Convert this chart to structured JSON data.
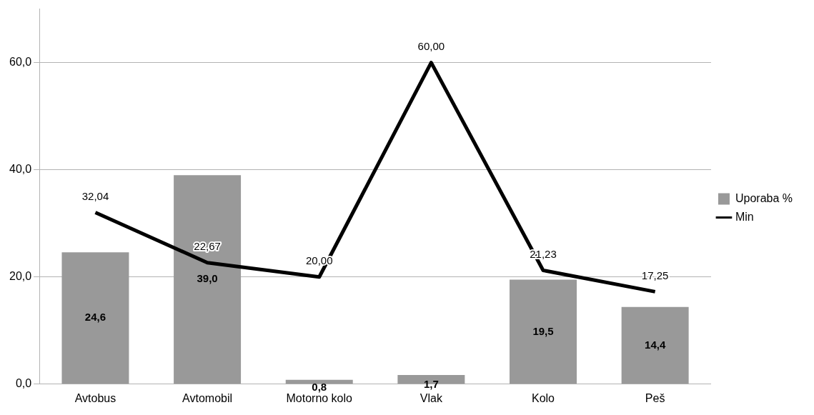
{
  "chart_data": {
    "type": "bar",
    "categories": [
      "Avtobus",
      "Avtomobil",
      "Motorno kolo",
      "Vlak",
      "Kolo",
      "Peš"
    ],
    "series": [
      {
        "name": "Uporaba %",
        "color": "#999999",
        "values": [
          24.6,
          39.0,
          0.8,
          1.7,
          19.5,
          14.4
        ],
        "value_labels": [
          "24,6",
          "39,0",
          "0,8",
          "1,7",
          "19,5",
          "14,4"
        ]
      },
      {
        "name": "Min",
        "type": "line",
        "color": "#000000",
        "values": [
          32.04,
          22.67,
          20.0,
          60.0,
          21.23,
          17.25
        ],
        "value_labels": [
          "32,04",
          "22,67",
          "20,00",
          "60,00",
          "21,23",
          "17,25"
        ]
      }
    ],
    "ylim": [
      0,
      70
    ],
    "yticks": [
      {
        "value": 0,
        "label": "0,0"
      },
      {
        "value": 20,
        "label": "20,0"
      },
      {
        "value": 40,
        "label": "40,0"
      },
      {
        "value": 60,
        "label": "60,0"
      }
    ],
    "grid": "y",
    "legend": "right",
    "marker": "none",
    "line_style": "solid"
  }
}
